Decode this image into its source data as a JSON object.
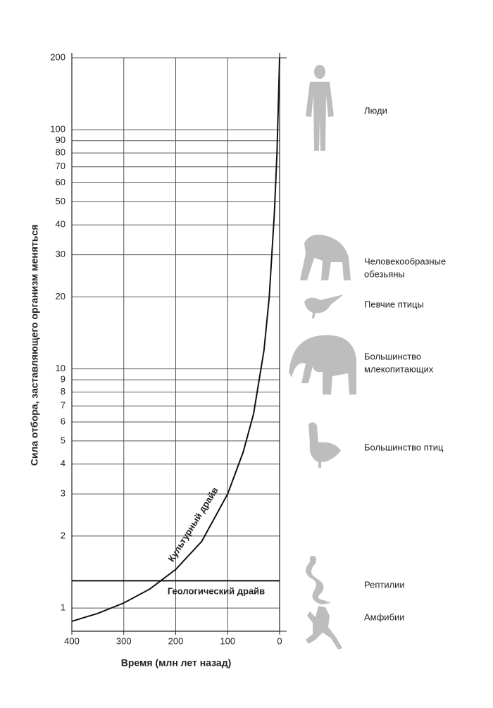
{
  "chart_data": {
    "type": "line",
    "xlabel": "Время (млн лет назад)",
    "ylabel": "Сила отбора, заставляющего организм меняться",
    "xlim": [
      400,
      0
    ],
    "xticks": [
      400,
      300,
      200,
      100,
      0
    ],
    "ylim": [
      0.8,
      200
    ],
    "yticks": [
      1,
      2,
      3,
      4,
      5,
      6,
      7,
      8,
      9,
      10,
      20,
      30,
      40,
      50,
      60,
      70,
      80,
      90,
      100,
      200
    ],
    "log_y": true,
    "grid": true,
    "series": [
      {
        "name": "Культурный драйв",
        "color": "#111111",
        "x": [
          400,
          350,
          300,
          250,
          200,
          150,
          100,
          70,
          50,
          30,
          20,
          10,
          5,
          0
        ],
        "values": [
          0.88,
          0.95,
          1.05,
          1.2,
          1.45,
          1.9,
          3.0,
          4.5,
          6.5,
          12,
          20,
          45,
          80,
          200
        ]
      },
      {
        "name": "Геологический драйв",
        "color": "#111111",
        "x": [
          400,
          0
        ],
        "values": [
          1.3,
          1.3
        ]
      }
    ],
    "side_labels": [
      [
        "Люди"
      ],
      [
        "Человекообразные",
        "обезьяны"
      ],
      [
        "Певчие птицы"
      ],
      [
        "Большинство",
        "млекопитающих"
      ],
      [
        "Большинство птиц"
      ],
      [
        "Рептилии"
      ],
      [
        "Амфибии"
      ]
    ]
  }
}
